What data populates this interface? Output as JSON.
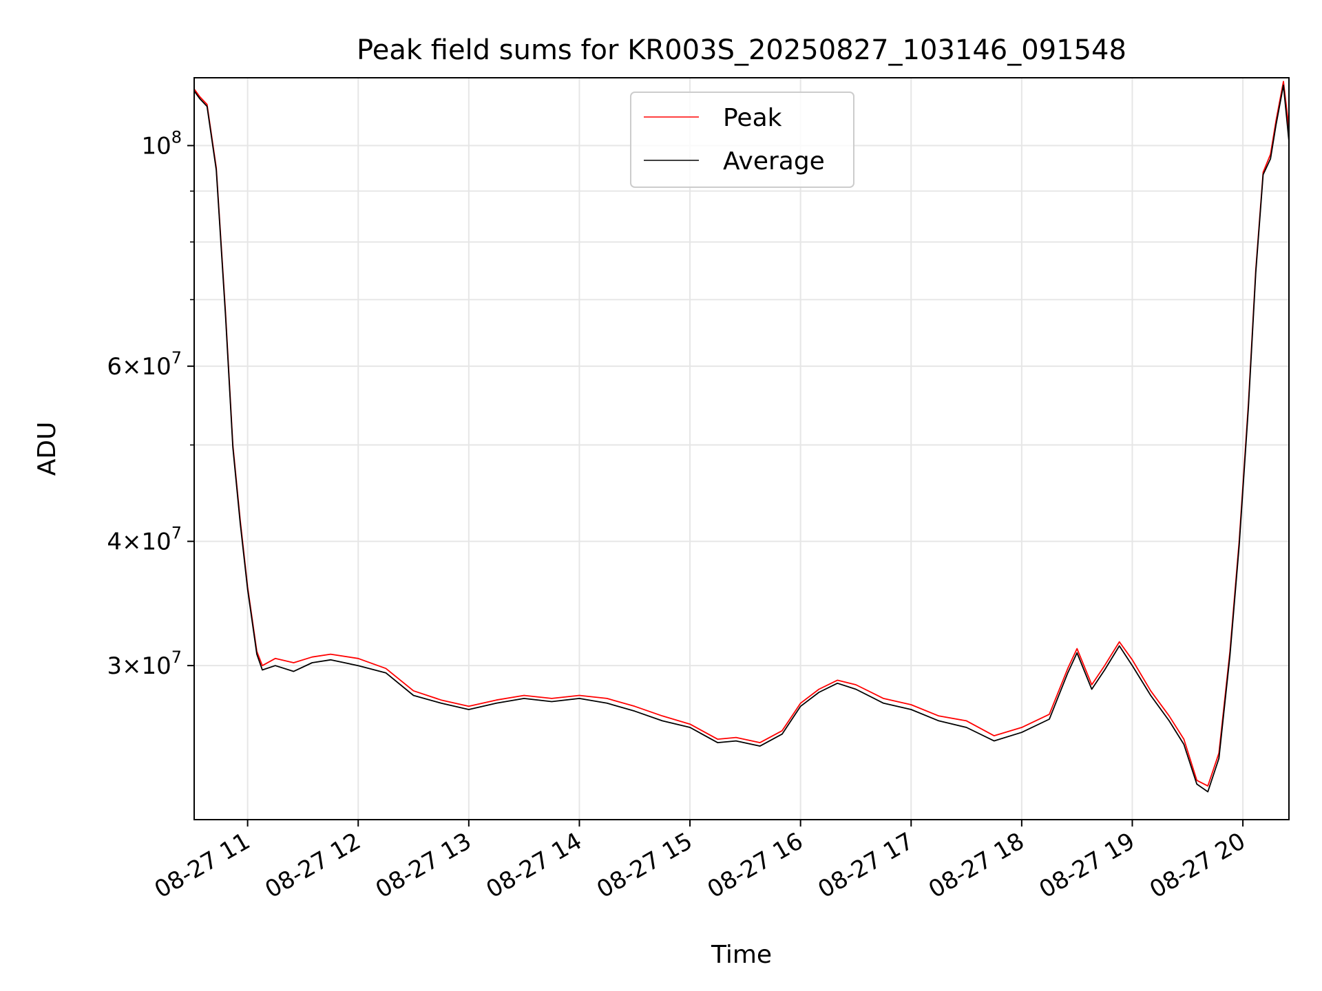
{
  "chart_data": {
    "type": "line",
    "title": "Peak field sums for KR003S_20250827_103146_091548",
    "xlabel": "Time",
    "ylabel": "ADU",
    "yscale": "log",
    "ylim": [
      21000000,
      117000000
    ],
    "xlim": [
      "2025-08-27 10:31",
      "2025-08-27 20:25"
    ],
    "grid": true,
    "legend_position": "upper center",
    "x_tick_labels": [
      "08-27 11",
      "08-27 12",
      "08-27 13",
      "08-27 14",
      "08-27 15",
      "08-27 16",
      "08-27 17",
      "08-27 18",
      "08-27 19",
      "08-27 20"
    ],
    "x_tick_times": [
      "2025-08-27 11:00",
      "2025-08-27 12:00",
      "2025-08-27 13:00",
      "2025-08-27 14:00",
      "2025-08-27 15:00",
      "2025-08-27 16:00",
      "2025-08-27 17:00",
      "2025-08-27 18:00",
      "2025-08-27 19:00",
      "2025-08-27 20:00"
    ],
    "y_ticks": [
      {
        "value": 100000000,
        "base": "10",
        "exp": "8",
        "mant": ""
      },
      {
        "value": 60000000,
        "base": "10",
        "exp": "7",
        "mant": "6"
      },
      {
        "value": 40000000,
        "base": "10",
        "exp": "7",
        "mant": "4"
      },
      {
        "value": 30000000,
        "base": "10",
        "exp": "7",
        "mant": "3"
      }
    ],
    "y_minor_ticks": [
      50000000,
      70000000,
      80000000,
      90000000
    ],
    "series": [
      {
        "name": "Peak",
        "color": "#ff0000",
        "points": [
          [
            "2025-08-27 10:31",
            114000000
          ],
          [
            "2025-08-27 10:34",
            112000000
          ],
          [
            "2025-08-27 10:38",
            110000000
          ],
          [
            "2025-08-27 10:43",
            95000000
          ],
          [
            "2025-08-27 10:48",
            68000000
          ],
          [
            "2025-08-27 10:52",
            50000000
          ],
          [
            "2025-08-27 10:56",
            42000000
          ],
          [
            "2025-08-27 11:00",
            36000000
          ],
          [
            "2025-08-27 11:05",
            31000000
          ],
          [
            "2025-08-27 11:08",
            30000000
          ],
          [
            "2025-08-27 11:15",
            30500000
          ],
          [
            "2025-08-27 11:25",
            30200000
          ],
          [
            "2025-08-27 11:35",
            30600000
          ],
          [
            "2025-08-27 11:45",
            30800000
          ],
          [
            "2025-08-27 12:00",
            30500000
          ],
          [
            "2025-08-27 12:15",
            29800000
          ],
          [
            "2025-08-27 12:30",
            28300000
          ],
          [
            "2025-08-27 12:45",
            27700000
          ],
          [
            "2025-08-27 13:00",
            27300000
          ],
          [
            "2025-08-27 13:15",
            27700000
          ],
          [
            "2025-08-27 13:30",
            28000000
          ],
          [
            "2025-08-27 13:45",
            27800000
          ],
          [
            "2025-08-27 14:00",
            28000000
          ],
          [
            "2025-08-27 14:15",
            27800000
          ],
          [
            "2025-08-27 14:30",
            27300000
          ],
          [
            "2025-08-27 14:45",
            26700000
          ],
          [
            "2025-08-27 15:00",
            26200000
          ],
          [
            "2025-08-27 15:15",
            25300000
          ],
          [
            "2025-08-27 15:25",
            25400000
          ],
          [
            "2025-08-27 15:38",
            25100000
          ],
          [
            "2025-08-27 15:50",
            25800000
          ],
          [
            "2025-08-27 16:00",
            27500000
          ],
          [
            "2025-08-27 16:10",
            28400000
          ],
          [
            "2025-08-27 16:20",
            29000000
          ],
          [
            "2025-08-27 16:30",
            28700000
          ],
          [
            "2025-08-27 16:45",
            27800000
          ],
          [
            "2025-08-27 17:00",
            27400000
          ],
          [
            "2025-08-27 17:15",
            26700000
          ],
          [
            "2025-08-27 17:30",
            26400000
          ],
          [
            "2025-08-27 17:45",
            25500000
          ],
          [
            "2025-08-27 18:00",
            26000000
          ],
          [
            "2025-08-27 18:15",
            26800000
          ],
          [
            "2025-08-27 18:25",
            29800000
          ],
          [
            "2025-08-27 18:30",
            31200000
          ],
          [
            "2025-08-27 18:38",
            28700000
          ],
          [
            "2025-08-27 18:45",
            30000000
          ],
          [
            "2025-08-27 18:53",
            31700000
          ],
          [
            "2025-08-27 19:00",
            30400000
          ],
          [
            "2025-08-27 19:10",
            28300000
          ],
          [
            "2025-08-27 19:20",
            26700000
          ],
          [
            "2025-08-27 19:28",
            25300000
          ],
          [
            "2025-08-27 19:35",
            23000000
          ],
          [
            "2025-08-27 19:41",
            22700000
          ],
          [
            "2025-08-27 19:47",
            24500000
          ],
          [
            "2025-08-27 19:53",
            31000000
          ],
          [
            "2025-08-27 19:58",
            40000000
          ],
          [
            "2025-08-27 20:03",
            55000000
          ],
          [
            "2025-08-27 20:07",
            75000000
          ],
          [
            "2025-08-27 20:11",
            94000000
          ],
          [
            "2025-08-27 20:15",
            98000000
          ],
          [
            "2025-08-27 20:18",
            106000000
          ],
          [
            "2025-08-27 20:22",
            116000000
          ],
          [
            "2025-08-27 20:25",
            104000000
          ]
        ]
      },
      {
        "name": "Average",
        "color": "#000000",
        "points": [
          [
            "2025-08-27 10:31",
            113500000
          ],
          [
            "2025-08-27 10:34",
            111500000
          ],
          [
            "2025-08-27 10:38",
            109500000
          ],
          [
            "2025-08-27 10:43",
            94500000
          ],
          [
            "2025-08-27 10:48",
            67500000
          ],
          [
            "2025-08-27 10:52",
            49700000
          ],
          [
            "2025-08-27 10:56",
            41700000
          ],
          [
            "2025-08-27 11:00",
            35800000
          ],
          [
            "2025-08-27 11:05",
            30800000
          ],
          [
            "2025-08-27 11:08",
            29700000
          ],
          [
            "2025-08-27 11:15",
            30000000
          ],
          [
            "2025-08-27 11:25",
            29600000
          ],
          [
            "2025-08-27 11:35",
            30200000
          ],
          [
            "2025-08-27 11:45",
            30400000
          ],
          [
            "2025-08-27 12:00",
            30000000
          ],
          [
            "2025-08-27 12:15",
            29500000
          ],
          [
            "2025-08-27 12:30",
            28000000
          ],
          [
            "2025-08-27 12:45",
            27500000
          ],
          [
            "2025-08-27 13:00",
            27100000
          ],
          [
            "2025-08-27 13:15",
            27500000
          ],
          [
            "2025-08-27 13:30",
            27800000
          ],
          [
            "2025-08-27 13:45",
            27600000
          ],
          [
            "2025-08-27 14:00",
            27800000
          ],
          [
            "2025-08-27 14:15",
            27500000
          ],
          [
            "2025-08-27 14:30",
            27000000
          ],
          [
            "2025-08-27 14:45",
            26400000
          ],
          [
            "2025-08-27 15:00",
            26000000
          ],
          [
            "2025-08-27 15:15",
            25100000
          ],
          [
            "2025-08-27 15:25",
            25200000
          ],
          [
            "2025-08-27 15:38",
            24900000
          ],
          [
            "2025-08-27 15:50",
            25600000
          ],
          [
            "2025-08-27 16:00",
            27300000
          ],
          [
            "2025-08-27 16:10",
            28200000
          ],
          [
            "2025-08-27 16:20",
            28800000
          ],
          [
            "2025-08-27 16:30",
            28400000
          ],
          [
            "2025-08-27 16:45",
            27500000
          ],
          [
            "2025-08-27 17:00",
            27100000
          ],
          [
            "2025-08-27 17:15",
            26400000
          ],
          [
            "2025-08-27 17:30",
            26000000
          ],
          [
            "2025-08-27 17:45",
            25200000
          ],
          [
            "2025-08-27 18:00",
            25700000
          ],
          [
            "2025-08-27 18:15",
            26500000
          ],
          [
            "2025-08-27 18:25",
            29500000
          ],
          [
            "2025-08-27 18:30",
            30900000
          ],
          [
            "2025-08-27 18:38",
            28400000
          ],
          [
            "2025-08-27 18:45",
            29700000
          ],
          [
            "2025-08-27 18:53",
            31400000
          ],
          [
            "2025-08-27 19:00",
            30000000
          ],
          [
            "2025-08-27 19:10",
            28000000
          ],
          [
            "2025-08-27 19:20",
            26400000
          ],
          [
            "2025-08-27 19:28",
            25000000
          ],
          [
            "2025-08-27 19:35",
            22800000
          ],
          [
            "2025-08-27 19:41",
            22400000
          ],
          [
            "2025-08-27 19:47",
            24200000
          ],
          [
            "2025-08-27 19:53",
            30700000
          ],
          [
            "2025-08-27 19:58",
            39600000
          ],
          [
            "2025-08-27 20:03",
            54500000
          ],
          [
            "2025-08-27 20:07",
            74500000
          ],
          [
            "2025-08-27 20:11",
            93500000
          ],
          [
            "2025-08-27 20:15",
            97000000
          ],
          [
            "2025-08-27 20:18",
            105000000
          ],
          [
            "2025-08-27 20:22",
            115000000
          ],
          [
            "2025-08-27 20:25",
            101000000
          ]
        ]
      }
    ]
  }
}
